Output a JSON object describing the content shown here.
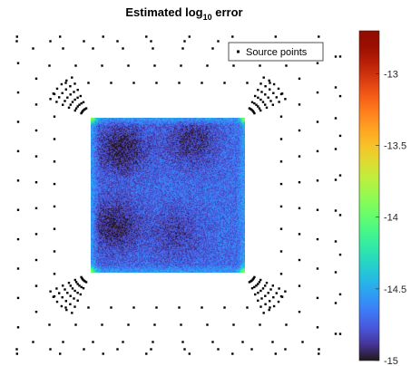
{
  "chart_data": {
    "type": "heatmap",
    "title_main": "Estimated log",
    "title_sub": "10",
    "title_end": " error",
    "legend": {
      "label": "Source points",
      "placement": "top-right"
    },
    "heatmap": {
      "domain": {
        "x": [
          -1,
          1
        ],
        "y": [
          -1,
          1
        ]
      },
      "typical_value": -14.7,
      "low_regions": [
        {
          "center": [
            -0.6,
            0.6
          ],
          "value": -14.95
        },
        {
          "center": [
            0.3,
            0.7
          ],
          "value": -14.9
        },
        {
          "center": [
            -0.7,
            -0.4
          ],
          "value": -14.95
        },
        {
          "center": [
            0.1,
            -0.5
          ],
          "value": -14.85
        }
      ],
      "edge_values": -14.55,
      "corner_value": -13.9
    },
    "source_points": {
      "description_free": true,
      "corner_fans": 4
    },
    "colorbar": {
      "range": [
        -15,
        -12.7
      ],
      "ticks": [
        {
          "value": -13,
          "label": "-13"
        },
        {
          "value": -13.5,
          "label": "-13.5"
        },
        {
          "value": -14,
          "label": "-14"
        },
        {
          "value": -14.5,
          "label": "-14.5"
        },
        {
          "value": -15,
          "label": "-15"
        }
      ],
      "colormap": "turbo"
    },
    "grid": false
  }
}
